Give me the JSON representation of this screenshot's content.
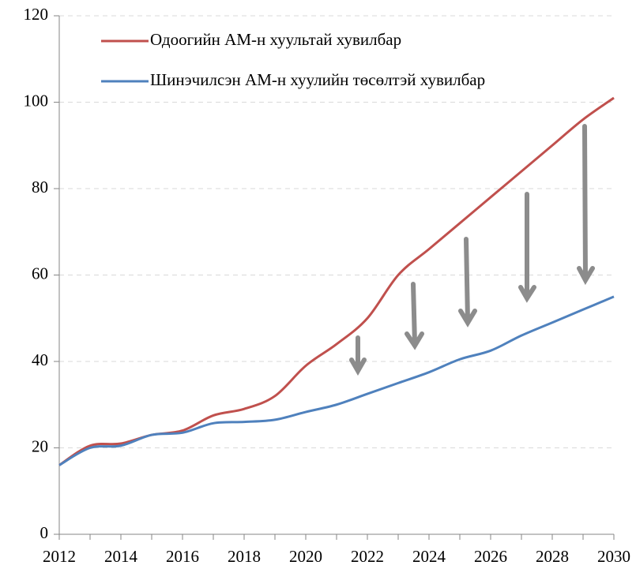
{
  "chart_data": {
    "type": "line",
    "x": [
      2012,
      2013,
      2014,
      2015,
      2016,
      2017,
      2018,
      2019,
      2020,
      2021,
      2022,
      2023,
      2024,
      2025,
      2026,
      2027,
      2028,
      2029,
      2030
    ],
    "series": [
      {
        "name": "Одоогийн АМ-н хуультай хувилбар",
        "color": "#c0504d",
        "values": [
          16,
          20.5,
          21,
          23,
          24,
          27.5,
          29,
          32,
          39,
          44,
          50,
          60,
          66,
          72,
          78,
          84,
          90,
          96,
          101
        ]
      },
      {
        "name": "Шинэчилсэн АМ-н хуулийн төсөлтэй хувилбар",
        "color": "#4f81bd",
        "values": [
          16,
          20,
          20.5,
          23,
          23.5,
          25.7,
          26,
          26.5,
          28.3,
          30,
          32.5,
          35,
          37.5,
          40.5,
          42.5,
          46,
          49,
          52,
          55
        ]
      }
    ],
    "xlim": [
      2012,
      2030
    ],
    "xticks": [
      2012,
      2014,
      2016,
      2018,
      2020,
      2022,
      2024,
      2026,
      2028,
      2030
    ],
    "ylim": [
      0,
      120
    ],
    "yticks": [
      0,
      20,
      40,
      60,
      80,
      100,
      120
    ],
    "grid": true,
    "legend": "top-left"
  }
}
